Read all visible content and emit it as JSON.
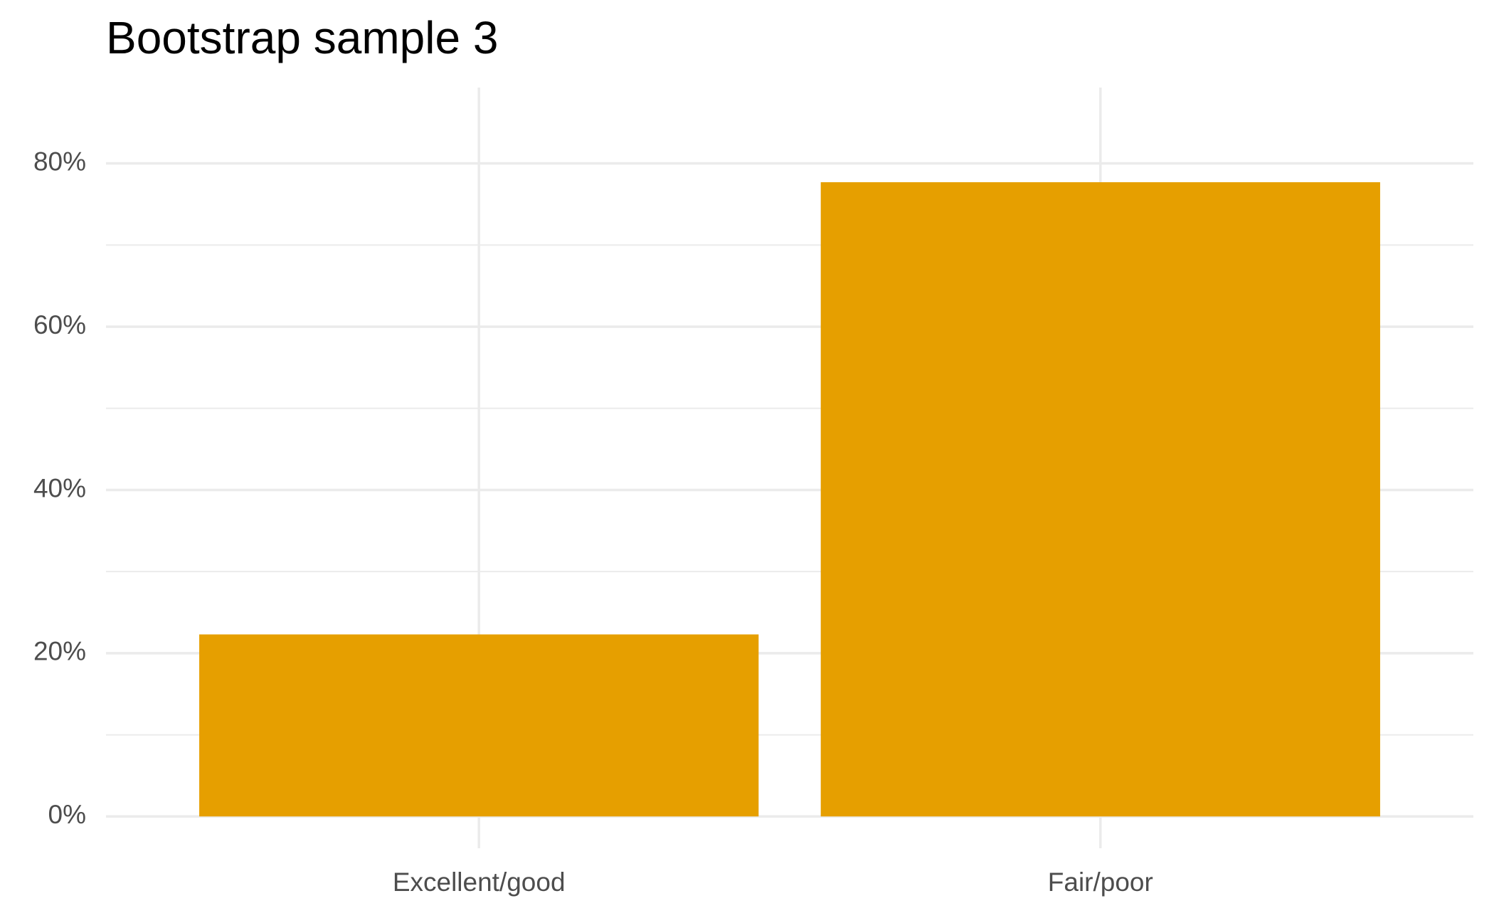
{
  "chart_data": {
    "type": "bar",
    "title": "Bootstrap sample 3",
    "categories": [
      "Excellent/good",
      "Fair/poor"
    ],
    "values": [
      22.3,
      77.7
    ],
    "color": "#e69f00",
    "ylim": [
      -3.9,
      89.3
    ],
    "yticks": [
      {
        "value": 0,
        "label": "0%"
      },
      {
        "value": 20,
        "label": "20%"
      },
      {
        "value": 40,
        "label": "40%"
      },
      {
        "value": 60,
        "label": "60%"
      },
      {
        "value": 80,
        "label": "80%"
      }
    ],
    "grid": true
  }
}
